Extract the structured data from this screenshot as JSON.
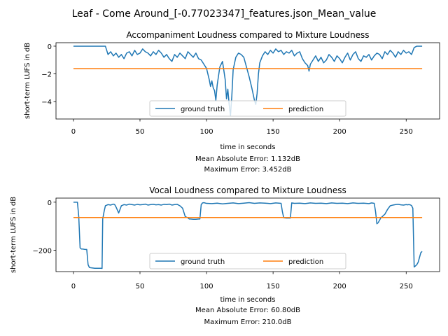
{
  "figure": {
    "suptitle": "Leaf - Come Around_[-0.77023347]_features.json_Mean_value"
  },
  "colors": {
    "ground_truth": "#1f77b4",
    "prediction": "#ff7f0e"
  },
  "chart_data": [
    {
      "type": "line",
      "title": "Accompaniment Loudness compared to Mixture Loudness",
      "xlabel": "time in seconds",
      "ylabel": "short-term LUFS in dB",
      "xlim": [
        -13.1,
        275.1
      ],
      "ylim": [
        -5.25,
        0.25
      ],
      "xticks": [
        0,
        50,
        100,
        150,
        200,
        250
      ],
      "yticks": [
        0,
        -2,
        -4
      ],
      "legend": {
        "placement": "lower center",
        "columns": 2
      },
      "metrics": [
        "Mean Absolute Error: 1.132dB",
        "Maximum Error: 3.452dB"
      ],
      "series": [
        {
          "name": "ground truth",
          "x": [
            0,
            24,
            26,
            28,
            30,
            32,
            34,
            36,
            38,
            40,
            42,
            44,
            46,
            48,
            50,
            52,
            54,
            56,
            58,
            60,
            62,
            64,
            66,
            68,
            70,
            72,
            74,
            76,
            78,
            80,
            82,
            84,
            86,
            88,
            90,
            92,
            94,
            96,
            98,
            100,
            102,
            103,
            104,
            105,
            106,
            107,
            108,
            110,
            112,
            114,
            115,
            116,
            117,
            118,
            119,
            120,
            122,
            124,
            126,
            128,
            130,
            132,
            134,
            136,
            137,
            138,
            139,
            140,
            142,
            144,
            146,
            148,
            150,
            152,
            154,
            156,
            158,
            160,
            162,
            164,
            166,
            168,
            170,
            172,
            174,
            176,
            177,
            178,
            180,
            182,
            184,
            186,
            188,
            190,
            192,
            194,
            196,
            198,
            200,
            202,
            204,
            206,
            208,
            210,
            212,
            214,
            216,
            218,
            220,
            222,
            224,
            226,
            228,
            230,
            232,
            234,
            236,
            238,
            240,
            242,
            244,
            246,
            248,
            250,
            252,
            254,
            256,
            258,
            262
          ],
          "y": [
            0,
            0,
            -0.6,
            -0.4,
            -0.7,
            -0.5,
            -0.8,
            -0.6,
            -0.9,
            -0.5,
            -0.4,
            -0.7,
            -0.3,
            -0.6,
            -0.5,
            -0.2,
            -0.4,
            -0.5,
            -0.7,
            -0.4,
            -0.6,
            -0.3,
            -0.5,
            -0.8,
            -0.6,
            -0.9,
            -1.1,
            -0.6,
            -0.8,
            -0.5,
            -0.7,
            -0.9,
            -0.4,
            -0.6,
            -0.8,
            -0.5,
            -0.9,
            -1.0,
            -1.3,
            -1.6,
            -2.4,
            -2.9,
            -2.5,
            -3.0,
            -3.2,
            -3.9,
            -2.8,
            -1.5,
            -1.1,
            -2.4,
            -3.8,
            -3.1,
            -4.2,
            -5.0,
            -3.6,
            -1.7,
            -0.8,
            -0.5,
            -0.6,
            -0.8,
            -1.5,
            -2.2,
            -3.0,
            -3.9,
            -4.2,
            -3.4,
            -2.0,
            -1.2,
            -0.7,
            -0.4,
            -0.6,
            -0.3,
            -0.5,
            -0.2,
            -0.4,
            -0.3,
            -0.6,
            -0.4,
            -0.5,
            -0.3,
            -0.7,
            -0.5,
            -0.4,
            -0.9,
            -1.2,
            -1.4,
            -1.8,
            -1.3,
            -1.0,
            -0.7,
            -1.1,
            -0.8,
            -1.2,
            -1.0,
            -0.6,
            -0.8,
            -1.1,
            -0.7,
            -0.9,
            -1.2,
            -0.8,
            -0.5,
            -1.0,
            -0.6,
            -0.4,
            -0.9,
            -1.1,
            -0.7,
            -0.8,
            -0.6,
            -1.0,
            -0.7,
            -0.5,
            -0.6,
            -0.9,
            -0.4,
            -0.6,
            -0.3,
            -0.5,
            -0.8,
            -0.4,
            -0.6,
            -0.3,
            -0.5,
            -0.4,
            -0.6,
            -0.1,
            0,
            0
          ]
        },
        {
          "name": "prediction",
          "x": [
            0,
            262
          ],
          "y": [
            -1.62,
            -1.62
          ]
        }
      ]
    },
    {
      "type": "line",
      "title": "Vocal Loudness compared to Mixture Loudness",
      "xlabel": "time in seconds",
      "ylabel": "short-term LUFS in dB",
      "xlim": [
        -13.1,
        275.1
      ],
      "ylim": [
        -289,
        17
      ],
      "xticks": [
        0,
        50,
        100,
        150,
        200,
        250
      ],
      "yticks": [
        0,
        -200
      ],
      "legend": {
        "placement": "lower center",
        "columns": 2
      },
      "metrics": [
        "Mean Absolute Error: 60.80dB",
        "Maximum Error: 210.0dB"
      ],
      "series": [
        {
          "name": "ground truth",
          "x": [
            0,
            1,
            2,
            3,
            4,
            5,
            6,
            7,
            8,
            9,
            10,
            11,
            12,
            13,
            16,
            19,
            21,
            21.5,
            22,
            23,
            24,
            26,
            28,
            30,
            31,
            32,
            34,
            36,
            38,
            40,
            42,
            44,
            46,
            48,
            50,
            52,
            54,
            56,
            58,
            60,
            62,
            64,
            66,
            68,
            70,
            72,
            74,
            76,
            78,
            80,
            82,
            84,
            86,
            87,
            88,
            90,
            92,
            94,
            95,
            96,
            97,
            98,
            100,
            104,
            108,
            112,
            116,
            120,
            124,
            128,
            132,
            136,
            140,
            144,
            148,
            152,
            156,
            157,
            158,
            160,
            162,
            163,
            164,
            166,
            170,
            174,
            178,
            182,
            186,
            190,
            194,
            198,
            202,
            206,
            210,
            214,
            218,
            222,
            224,
            226,
            227,
            228,
            229,
            230,
            231,
            232,
            234,
            236,
            238,
            240,
            242,
            244,
            246,
            248,
            250,
            251,
            252,
            253,
            254,
            255,
            256,
            257,
            258,
            259,
            260,
            261,
            262
          ],
          "y": [
            0,
            0,
            0,
            0,
            -60,
            -190,
            -195,
            -195,
            -196,
            -197,
            -197,
            -260,
            -272,
            -273,
            -275,
            -275,
            -275,
            -276,
            -70,
            -40,
            -15,
            -10,
            -12,
            -8,
            -10,
            -20,
            -45,
            -15,
            -10,
            -12,
            -8,
            -10,
            -12,
            -9,
            -11,
            -10,
            -8,
            -12,
            -10,
            -9,
            -11,
            -10,
            -12,
            -9,
            -10,
            -8,
            -12,
            -10,
            -9,
            -15,
            -25,
            -60,
            -65,
            -70,
            -70,
            -71,
            -71,
            -70,
            -70,
            -10,
            -3,
            -2,
            -5,
            -6,
            -4,
            -7,
            -5,
            -3,
            -6,
            -4,
            -2,
            -5,
            -3,
            -4,
            -6,
            -3,
            -5,
            -40,
            -65,
            -66,
            -66,
            -66,
            -3,
            -5,
            -4,
            -6,
            -3,
            -5,
            -4,
            -6,
            -3,
            -5,
            -4,
            -6,
            -3,
            -5,
            -4,
            -6,
            -3,
            -5,
            -40,
            -90,
            -85,
            -75,
            -65,
            -60,
            -50,
            -30,
            -15,
            -12,
            -10,
            -9,
            -11,
            -12,
            -10,
            -11,
            -10,
            -11,
            -14,
            -25,
            -270,
            -265,
            -260,
            -250,
            -230,
            -210,
            -205
          ]
        },
        {
          "name": "prediction",
          "x": [
            0,
            262
          ],
          "y": [
            -64,
            -64
          ]
        }
      ]
    }
  ]
}
